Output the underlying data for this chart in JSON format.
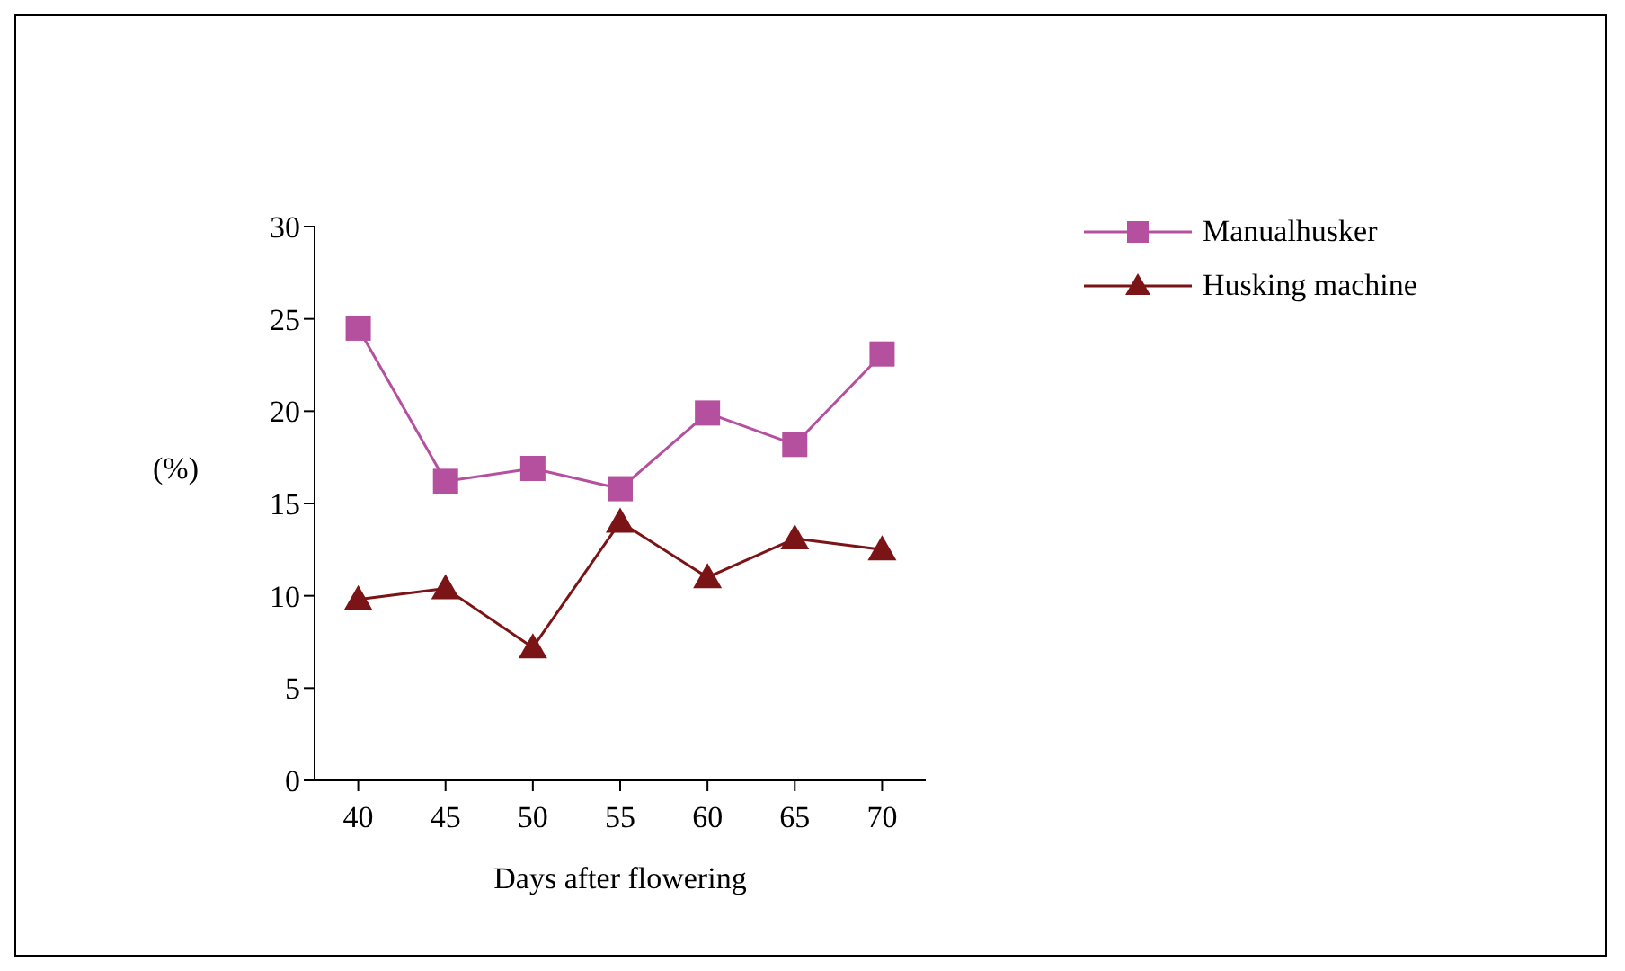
{
  "chart_data": {
    "type": "line",
    "xlabel": "Days after flowering",
    "ylabel": "(%)",
    "categories": [
      "40",
      "45",
      "50",
      "55",
      "60",
      "65",
      "70"
    ],
    "ylim": [
      0,
      30
    ],
    "yticks": [
      0,
      5,
      10,
      15,
      20,
      25,
      30
    ],
    "grid": false,
    "legend": "top right",
    "series": [
      {
        "name": "Manualhusker",
        "color": "#b5509f",
        "marker": "square",
        "values": [
          24.5,
          16.2,
          16.9,
          15.8,
          19.9,
          18.2,
          23.1
        ]
      },
      {
        "name": "Husking machine",
        "color": "#7b1416",
        "marker": "triangle",
        "values": [
          9.8,
          10.4,
          7.2,
          14.0,
          11.0,
          13.1,
          12.5
        ]
      }
    ]
  }
}
